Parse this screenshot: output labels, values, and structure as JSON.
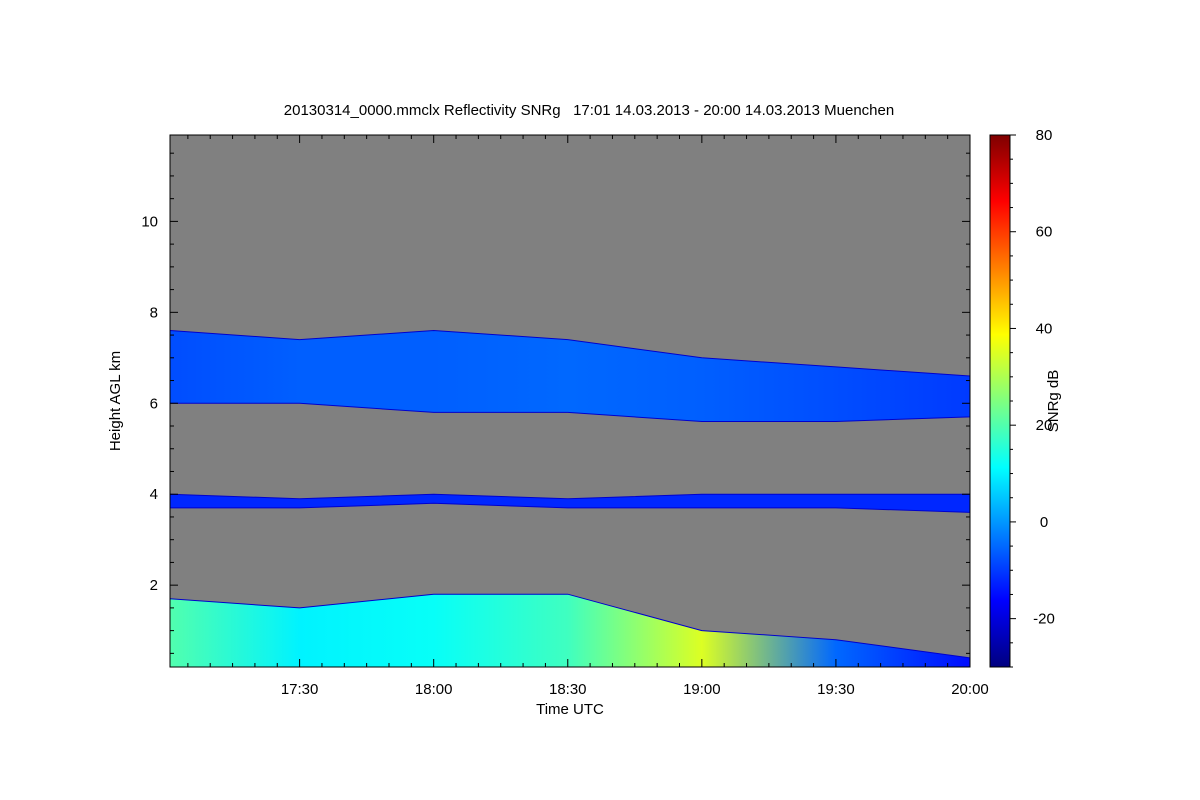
{
  "chart_data": {
    "type": "heatmap",
    "title": "20130314_0000.mmclx Reflectivity SNRg   17:01 14.03.2013 - 20:00 14.03.2013 Muenchen",
    "xlabel": "Time UTC",
    "ylabel": "Height AGL km",
    "colorbar_label": "SNRg dB",
    "x_range": [
      "17:01",
      "20:00"
    ],
    "x_ticks": [
      "17:30",
      "18:00",
      "18:30",
      "19:00",
      "19:30",
      "20:00"
    ],
    "y_range": [
      0.2,
      11.9
    ],
    "y_ticks": [
      2,
      4,
      6,
      8,
      10
    ],
    "colorbar_range": [
      -30,
      80
    ],
    "colorbar_ticks": [
      -20,
      0,
      20,
      40,
      60,
      80
    ],
    "colormap": "jet",
    "background_color": "#808080",
    "layers": [
      {
        "name": "",
        "x": [
          "17:01",
          "17:30",
          "18:00",
          "18:30",
          "19:00",
          "19:30",
          "20:00"
        ],
        "base_km": [
          6.0,
          6.0,
          5.8,
          5.8,
          5.6,
          5.6,
          5.7
        ],
        "top_km": [
          7.6,
          7.4,
          7.6,
          7.4,
          7.0,
          6.8,
          6.6
        ],
        "snr_db": [
          -8,
          -6,
          -6,
          -5,
          -6,
          -8,
          -10
        ]
      },
      {
        "name": "",
        "x": [
          "17:01",
          "17:30",
          "18:00",
          "18:30",
          "19:00",
          "19:30",
          "20:00"
        ],
        "base_km": [
          3.7,
          3.7,
          3.8,
          3.7,
          3.7,
          3.7,
          3.6
        ],
        "top_km": [
          4.0,
          3.9,
          4.0,
          3.9,
          4.0,
          4.0,
          4.0
        ],
        "snr_db": [
          -12,
          -12,
          -12,
          -12,
          -12,
          -12,
          -12
        ]
      },
      {
        "name": "",
        "x": [
          "17:01",
          "17:30",
          "18:00",
          "18:30",
          "19:00",
          "19:30",
          "20:00"
        ],
        "base_km": [
          0.2,
          0.2,
          0.2,
          0.2,
          0.2,
          0.2,
          0.2
        ],
        "top_km": [
          1.7,
          1.5,
          1.8,
          1.8,
          1.0,
          0.8,
          0.4
        ],
        "snr_db": [
          20,
          10,
          12,
          18,
          35,
          -5,
          -15
        ]
      }
    ]
  },
  "colors": {
    "background": "#808080",
    "frame": "#000000"
  }
}
